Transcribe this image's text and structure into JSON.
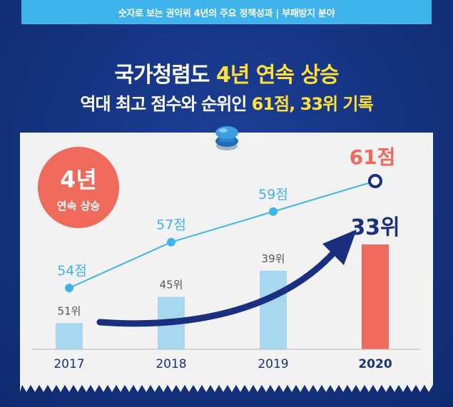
{
  "banner": {
    "text": "숫자로 보는 권익위 4년의 주요 정책성과 | 부패방지 분야"
  },
  "headline": {
    "line1_prefix": "국가청렴도 ",
    "line1_highlight": "4년 연속 상승",
    "line2_prefix": "역대 최고 점수와 순위인 ",
    "line2_highlight": "61점, 33위 기록"
  },
  "badge": {
    "line1": "4년",
    "line2": "연속 상승"
  },
  "colors": {
    "background": "#14307a",
    "banner": "#3fb4ec",
    "highlight": "#ffe03a",
    "line": "#3fb4ec",
    "bar": "#a8d8f0",
    "bar_highlight": "#ef6a5a",
    "badge": "#ef6a5a",
    "arrow": "#1a2f80"
  },
  "chart_data": {
    "type": "bar+line",
    "categories": [
      "2017",
      "2018",
      "2019",
      "2020"
    ],
    "score_series": {
      "values": [
        54,
        57,
        59,
        61
      ],
      "labels": [
        "54점",
        "57점",
        "59점",
        "61점"
      ]
    },
    "rank_series": {
      "values": [
        51,
        45,
        39,
        33
      ],
      "labels": [
        "51위",
        "45위",
        "39위",
        "33위"
      ]
    },
    "highlight_index": 3
  }
}
